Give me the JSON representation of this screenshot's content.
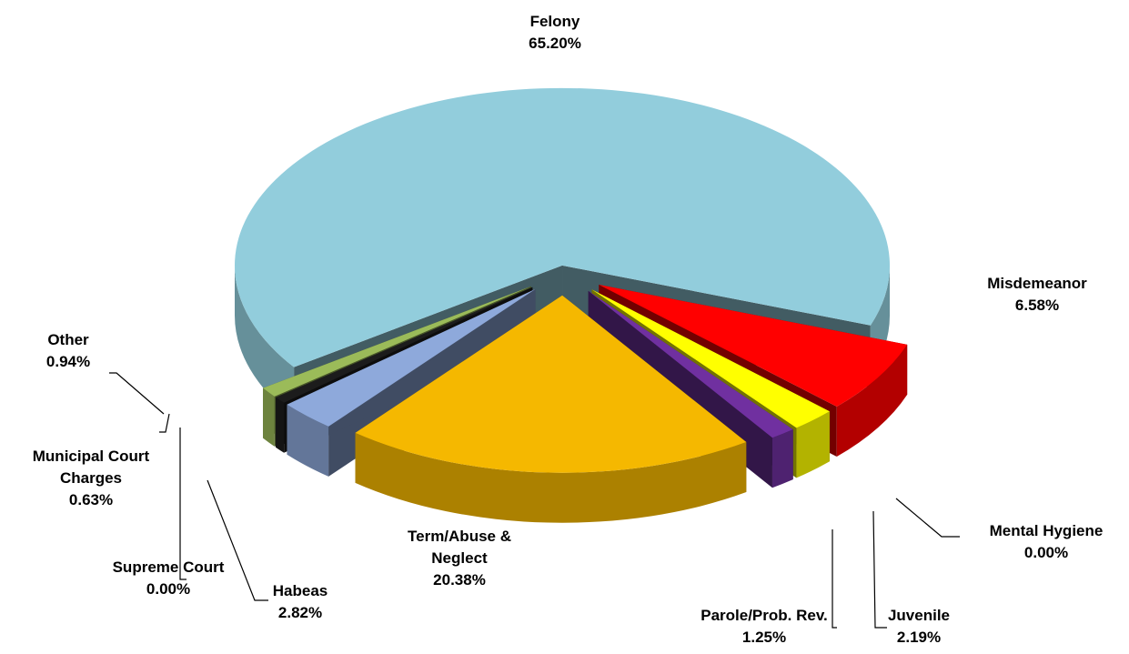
{
  "chart_data": {
    "type": "pie3d",
    "categories": [
      "Felony",
      "Misdemeanor",
      "Mental Hygiene",
      "Juvenile",
      "Parole/Prob. Rev.",
      "Term/Abuse & Neglect",
      "Habeas",
      "Supreme Court",
      "Municipal Court Charges",
      "Other"
    ],
    "values": [
      65.2,
      6.58,
      0,
      2.19,
      1.25,
      20.38,
      2.82,
      0,
      0.63,
      0.94
    ],
    "value_labels": [
      "65.20%",
      "6.58%",
      "0.00%",
      "2.19%",
      "1.25%",
      "20.38%",
      "2.82%",
      "0.00%",
      "0.63%",
      "0.94%"
    ],
    "colors": [
      "#92cddc",
      "#ff0000",
      "#1e6b2e",
      "#ffff00",
      "#7030a0",
      "#f5b800",
      "#8ea9db",
      "#000000",
      "#1c1c1c",
      "#9bbb59"
    ]
  }
}
